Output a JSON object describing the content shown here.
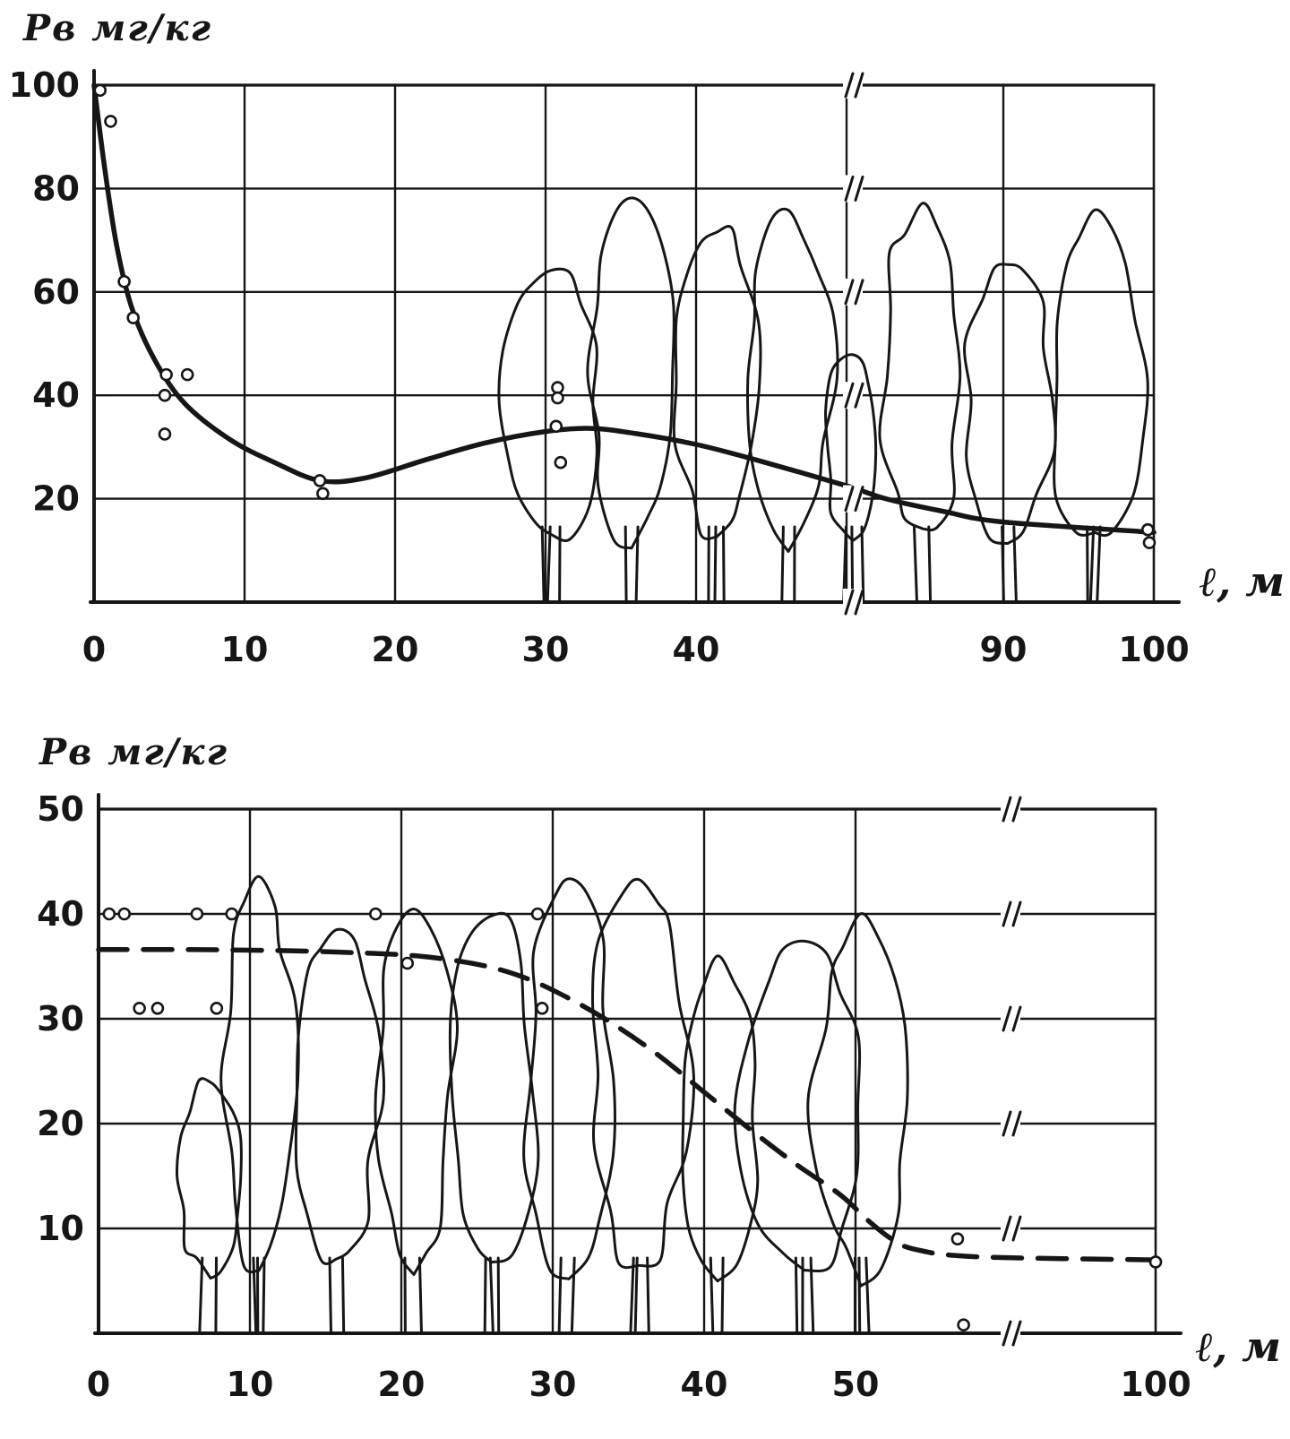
{
  "page": {
    "background": "#ffffff",
    "ink": "#161616"
  },
  "chart_data": [
    {
      "type": "line",
      "title": "",
      "ylabel": "Рв мг/кг",
      "xlabel": "ℓ, м",
      "grid": true,
      "legend": "none",
      "x_axis": {
        "range": [
          0,
          100
        ],
        "ticks": [
          0,
          10,
          20,
          30,
          40,
          90,
          100
        ],
        "gridlines": [
          10,
          20,
          30,
          40,
          50,
          90
        ],
        "break": {
          "from": 50,
          "to": 90
        }
      },
      "y_axis": {
        "range": [
          0,
          100
        ],
        "ticks": [
          20,
          40,
          60,
          80,
          100
        ]
      },
      "series": [
        {
          "style": "solid",
          "points": [
            [
              0,
              100
            ],
            [
              0.7,
              84
            ],
            [
              1.5,
              69
            ],
            [
              2.5,
              57
            ],
            [
              4,
              47
            ],
            [
              6,
              38.5
            ],
            [
              9,
              31.5
            ],
            [
              12,
              27
            ],
            [
              15,
              23.5
            ],
            [
              18,
              24
            ],
            [
              22,
              27.5
            ],
            [
              26,
              30.8
            ],
            [
              30,
              33
            ],
            [
              33,
              33.6
            ],
            [
              36,
              32.6
            ],
            [
              40,
              30.5
            ],
            [
              44,
              27.5
            ],
            [
              50,
              22.5
            ],
            [
              60,
              20
            ],
            [
              75,
              17.5
            ],
            [
              90,
              15.5
            ],
            [
              100,
              13.5
            ]
          ]
        }
      ],
      "scatter": [
        [
          0.4,
          99
        ],
        [
          1.1,
          93
        ],
        [
          2,
          62
        ],
        [
          2.6,
          55
        ],
        [
          4.8,
          44
        ],
        [
          6.2,
          44
        ],
        [
          4.7,
          40
        ],
        [
          4.7,
          32.5
        ],
        [
          15,
          23.5
        ],
        [
          15.2,
          21
        ],
        [
          30.8,
          41.5
        ],
        [
          30.8,
          39.5
        ],
        [
          30.7,
          34
        ],
        [
          31,
          27
        ],
        [
          99.6,
          14
        ],
        [
          99.7,
          11.5
        ]
      ]
    },
    {
      "type": "line",
      "title": "",
      "ylabel": "Рв мг/кг",
      "xlabel": "ℓ, м",
      "grid": true,
      "legend": "none",
      "x_axis": {
        "range": [
          0,
          100
        ],
        "ticks": [
          0,
          10,
          20,
          30,
          40,
          50,
          100
        ],
        "gridlines": [
          10,
          20,
          30,
          40,
          50
        ],
        "break": {
          "from": 50,
          "to": 100
        }
      },
      "y_axis": {
        "range": [
          0,
          50
        ],
        "ticks": [
          10,
          20,
          30,
          40,
          50
        ]
      },
      "series": [
        {
          "style": "dashed",
          "points": [
            [
              0,
              36.6
            ],
            [
              6,
              36.6
            ],
            [
              12,
              36.5
            ],
            [
              17,
              36.3
            ],
            [
              21,
              36
            ],
            [
              25,
              35.2
            ],
            [
              28,
              34
            ],
            [
              31,
              32
            ],
            [
              34,
              29.5
            ],
            [
              37,
              26.5
            ],
            [
              40,
              23
            ],
            [
              43,
              19.5
            ],
            [
              46,
              16.2
            ],
            [
              49,
              13.2
            ],
            [
              52,
              10.8
            ],
            [
              56,
              9
            ],
            [
              60,
              8
            ],
            [
              70,
              7.3
            ],
            [
              100,
              7
            ]
          ]
        }
      ],
      "scatter": [
        [
          0.7,
          40
        ],
        [
          1.7,
          40
        ],
        [
          6.5,
          40
        ],
        [
          8.8,
          40
        ],
        [
          18.3,
          40
        ],
        [
          29,
          40
        ],
        [
          2.7,
          31
        ],
        [
          3.9,
          31
        ],
        [
          7.8,
          31
        ],
        [
          29.3,
          31
        ],
        [
          20.4,
          35.3
        ],
        [
          67,
          9
        ],
        [
          68,
          0.8
        ],
        [
          100,
          6.8
        ]
      ]
    }
  ]
}
